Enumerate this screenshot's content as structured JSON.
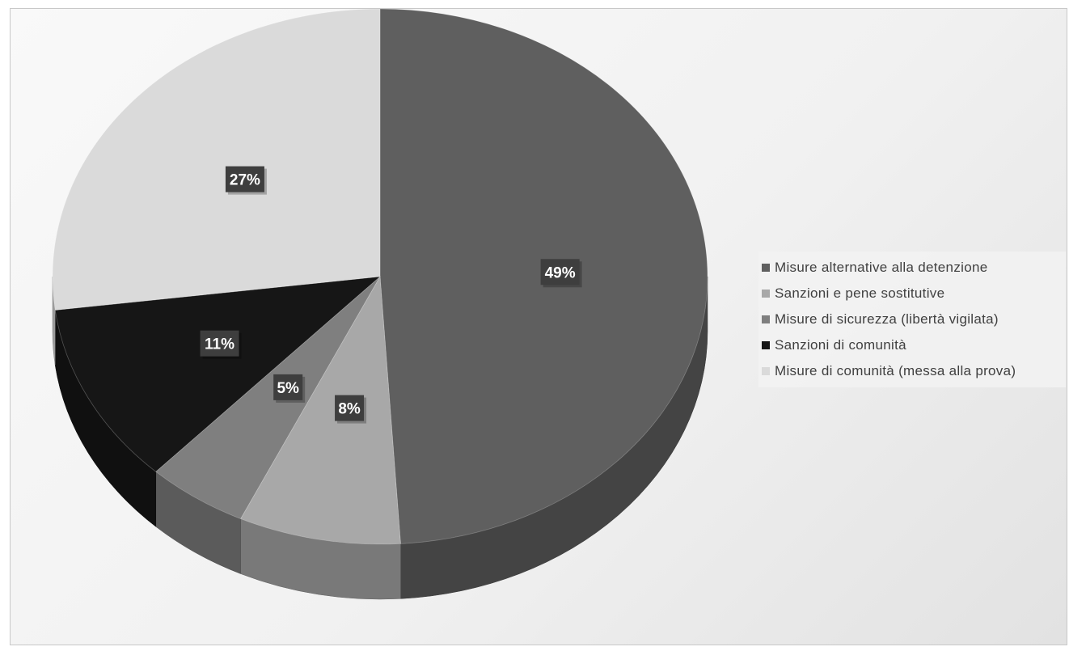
{
  "chart_data": {
    "type": "pie",
    "style": "3d",
    "categories": [
      "Misure alternative alla detenzione",
      "Sanzioni e pene sostitutive",
      "Misure di sicurezza (libertà vigilata)",
      "Sanzioni di comunità",
      "Misure di comunità (messa alla prova)"
    ],
    "values": [
      49,
      8,
      5,
      11,
      27
    ],
    "labels": [
      "49%",
      "8%",
      "5%",
      "11%",
      "27%"
    ],
    "colors": [
      "#5f5f5f",
      "#a8a8a8",
      "#7f7f7f",
      "#161616",
      "#dadada"
    ],
    "legend_position": "right",
    "title": ""
  }
}
